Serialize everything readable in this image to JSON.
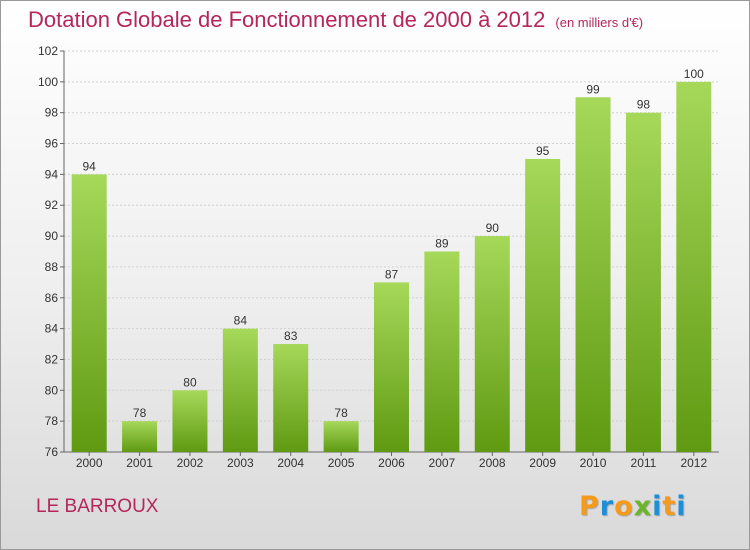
{
  "header": {
    "title": "Dotation Globale de Fonctionnement de 2000 à 2012",
    "subtitle": "(en milliers d'€)"
  },
  "footer": {
    "commune": "LE BARROUX",
    "logo_letters": [
      "P",
      "r",
      "o",
      "x",
      "i",
      "t",
      "i"
    ]
  },
  "colors": {
    "title": "#b5265a",
    "bar_light": "#a6d85a",
    "bar_dark": "#5f9a12",
    "logo": [
      "#f59a1b",
      "#1e8fd6",
      "#f59a1b",
      "#6ab52a",
      "#1e8fd6",
      "#f59a1b",
      "#1e8fd6"
    ]
  },
  "chart_data": {
    "type": "bar",
    "categories": [
      "2000",
      "2001",
      "2002",
      "2003",
      "2004",
      "2005",
      "2006",
      "2007",
      "2008",
      "2009",
      "2010",
      "2011",
      "2012"
    ],
    "values": [
      94,
      78,
      80,
      84,
      83,
      78,
      87,
      89,
      90,
      95,
      99,
      98,
      100
    ],
    "ylim": [
      76,
      102
    ],
    "yticks": [
      76,
      78,
      80,
      82,
      84,
      86,
      88,
      90,
      92,
      94,
      96,
      98,
      100,
      102
    ],
    "grid": true
  }
}
